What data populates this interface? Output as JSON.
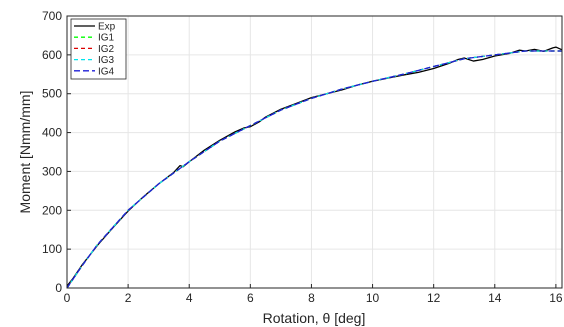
{
  "chart_data": {
    "type": "line",
    "title": "",
    "xlabel": "Rotation, θ [deg]",
    "ylabel": "Moment [Nmm/mm]",
    "xlim": [
      0,
      16.2
    ],
    "ylim": [
      0,
      700
    ],
    "xticks": [
      0,
      2,
      4,
      6,
      8,
      10,
      12,
      14,
      16
    ],
    "yticks": [
      0,
      100,
      200,
      300,
      400,
      500,
      600,
      700
    ],
    "grid": true,
    "legend_position": "top-left",
    "series": [
      {
        "name": "Exp",
        "color": "#000000",
        "dash": "solid",
        "x": [
          0,
          0.2,
          0.5,
          1.0,
          1.5,
          2.0,
          2.5,
          3.0,
          3.5,
          3.7,
          3.8,
          4.0,
          4.5,
          5.0,
          5.5,
          5.8,
          6.0,
          6.3,
          6.5,
          7.0,
          7.5,
          8.0,
          8.5,
          9.0,
          9.5,
          10.0,
          10.5,
          11.0,
          11.5,
          12.0,
          12.5,
          12.8,
          13.0,
          13.3,
          13.6,
          14.0,
          14.5,
          14.8,
          15.0,
          15.3,
          15.6,
          15.9,
          16.0,
          16.2
        ],
        "y": [
          5,
          25,
          60,
          110,
          155,
          198,
          235,
          268,
          298,
          315,
          312,
          325,
          355,
          380,
          402,
          412,
          415,
          428,
          440,
          460,
          475,
          490,
          500,
          510,
          522,
          532,
          540,
          548,
          555,
          565,
          578,
          588,
          592,
          584,
          588,
          597,
          604,
          612,
          610,
          614,
          609,
          618,
          620,
          613
        ]
      },
      {
        "name": "IG1",
        "color": "#00ff00",
        "dash": "4 3",
        "x": [
          0,
          0.5,
          1.0,
          2.0,
          3.0,
          4.0,
          5.0,
          6.0,
          7.0,
          8.0,
          9.0,
          10.0,
          11.0,
          12.0,
          13.0,
          14.0,
          15.0,
          16.0,
          16.2
        ],
        "y": [
          0,
          58,
          112,
          200,
          268,
          325,
          378,
          418,
          458,
          488,
          512,
          532,
          550,
          570,
          590,
          600,
          610,
          610,
          610
        ]
      },
      {
        "name": "IG2",
        "color": "#dd0000",
        "dash": "4 3",
        "x": [
          0,
          0.5,
          1.0,
          2.0,
          3.0,
          4.0,
          5.0,
          6.0,
          7.0,
          8.0,
          9.0,
          10.0,
          11.0,
          12.0,
          13.0,
          14.0,
          15.0,
          16.0,
          16.2
        ],
        "y": [
          0,
          58,
          112,
          200,
          268,
          325,
          378,
          418,
          458,
          488,
          512,
          532,
          550,
          570,
          590,
          600,
          610,
          610,
          610
        ]
      },
      {
        "name": "IG3",
        "color": "#00e5ee",
        "dash": "4 3",
        "x": [
          0,
          0.5,
          1.0,
          2.0,
          3.0,
          4.0,
          5.0,
          6.0,
          7.0,
          8.0,
          9.0,
          10.0,
          11.0,
          12.0,
          13.0,
          14.0,
          15.0,
          16.0,
          16.2
        ],
        "y": [
          0,
          58,
          112,
          200,
          268,
          325,
          378,
          418,
          458,
          488,
          512,
          532,
          550,
          570,
          590,
          600,
          610,
          610,
          610
        ]
      },
      {
        "name": "IG4",
        "color": "#1f1fd8",
        "dash": "6 3",
        "x": [
          0,
          0.5,
          1.0,
          2.0,
          3.0,
          4.0,
          5.0,
          6.0,
          7.0,
          8.0,
          9.0,
          10.0,
          11.0,
          12.0,
          13.0,
          14.0,
          15.0,
          16.0,
          16.2
        ],
        "y": [
          0,
          58,
          112,
          200,
          268,
          325,
          378,
          418,
          458,
          488,
          512,
          532,
          550,
          570,
          590,
          600,
          610,
          610,
          610
        ]
      }
    ]
  }
}
